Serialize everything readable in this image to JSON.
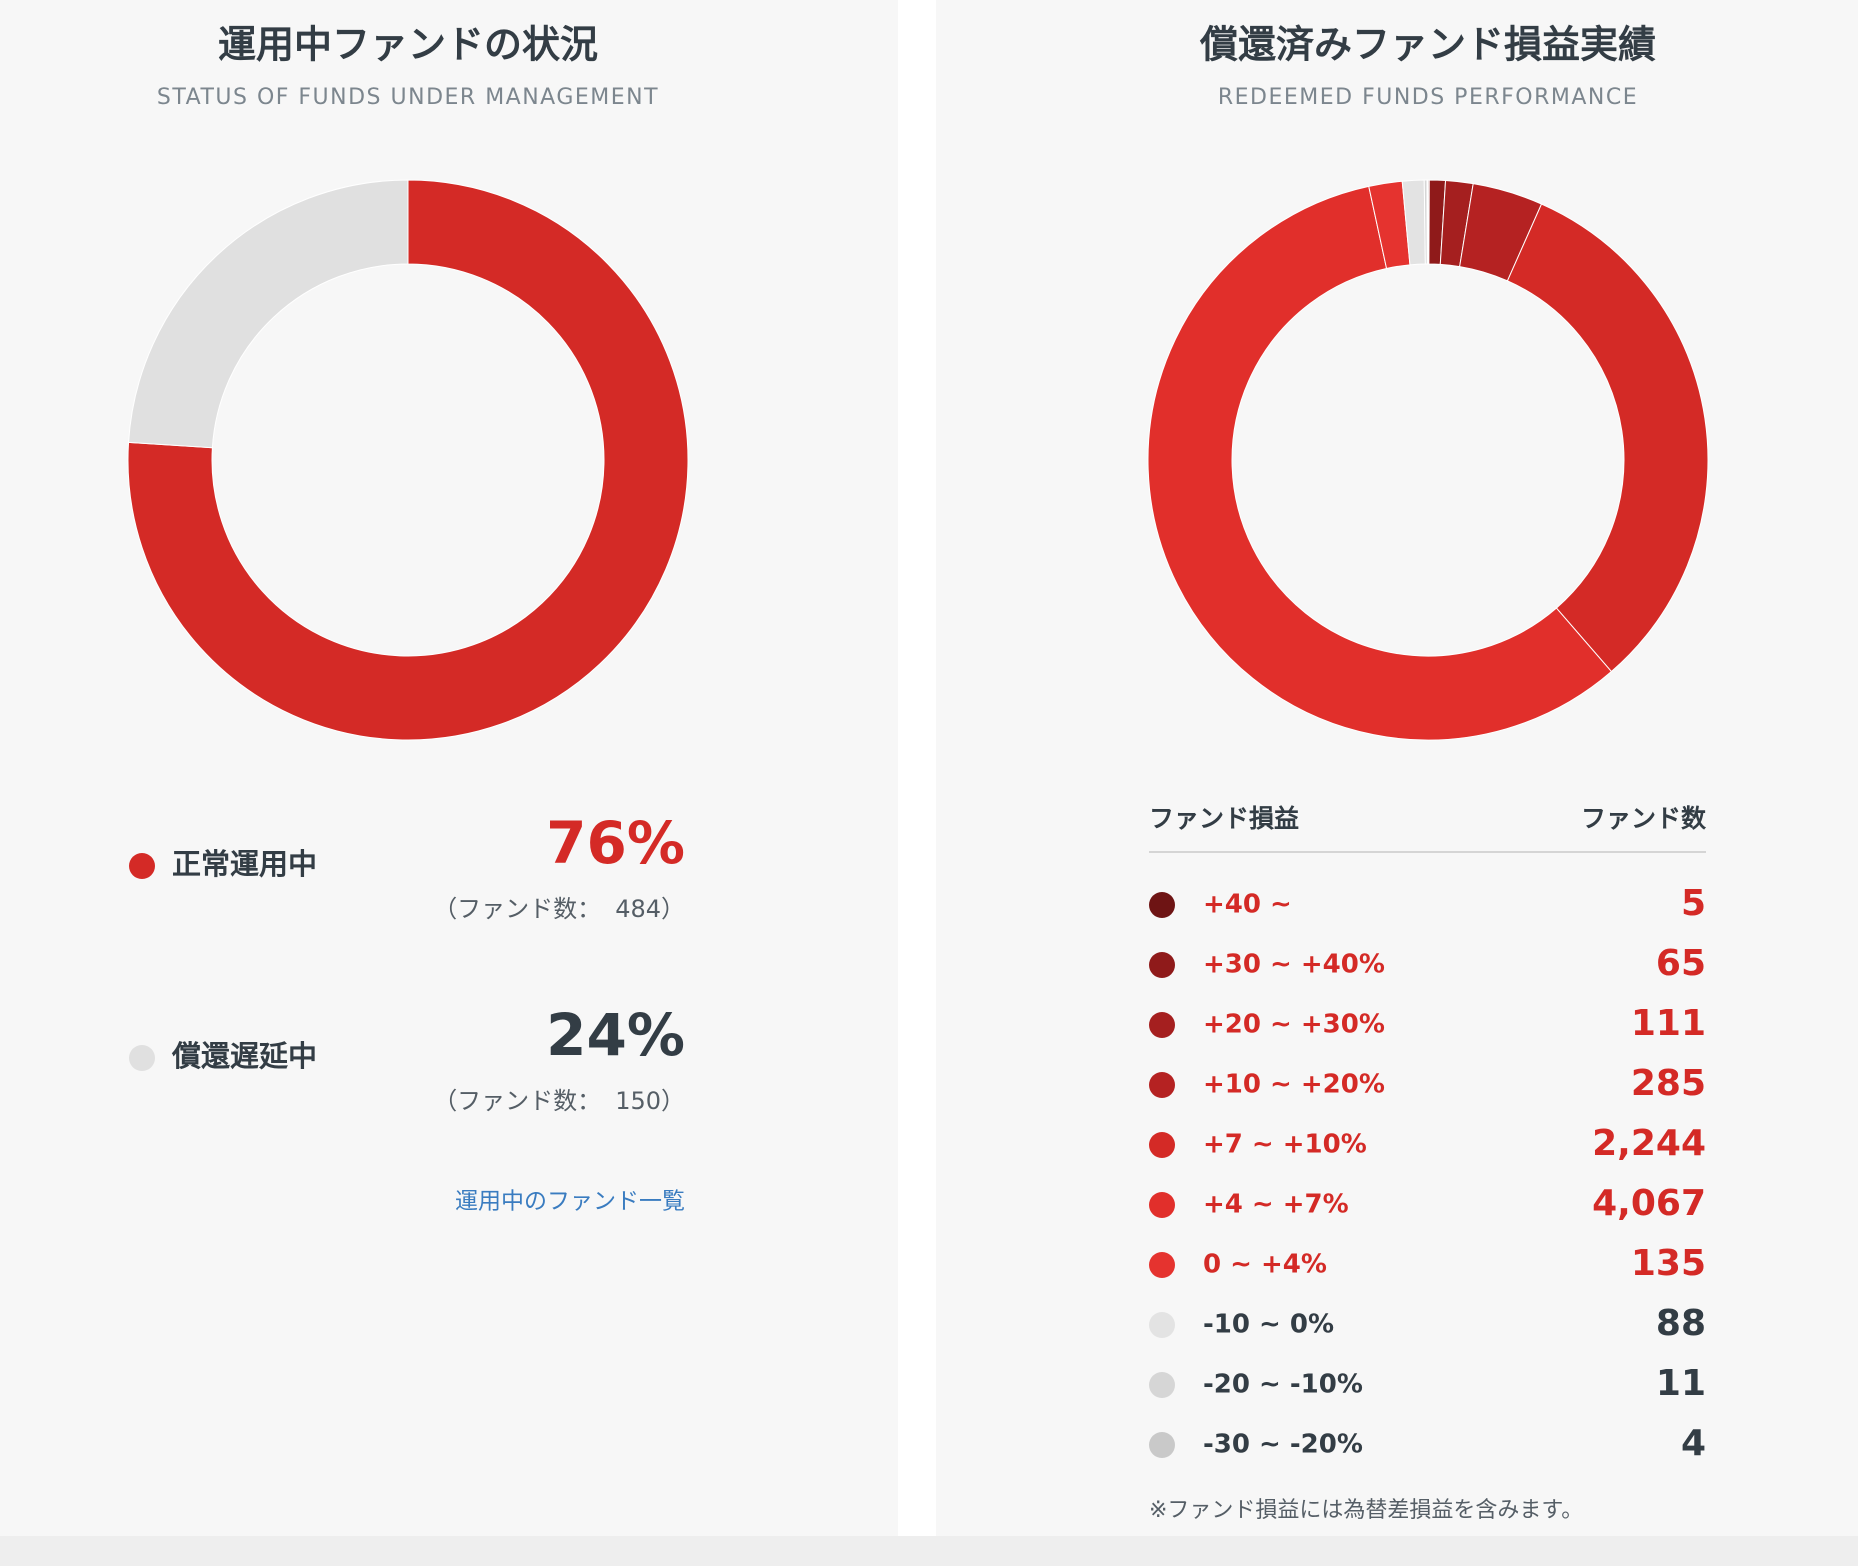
{
  "chart_data": [
    {
      "type": "donut",
      "title": "運用中ファンドの状況",
      "subtitle": "STATUS OF FUNDS UNDER MANAGEMENT",
      "categories": [
        "正常運用中",
        "償還遅延中"
      ],
      "values": [
        76,
        24
      ],
      "value_labels": [
        "76%",
        "24%"
      ],
      "colors": [
        "#d42a26",
        "#e0e0e0"
      ],
      "label_colors": [
        "#d42a26",
        "#333d45"
      ],
      "count_prefix": "（ファンド数：",
      "counts": [
        484,
        150
      ],
      "count_suffix": "）",
      "link": "運用中のファンド一覧"
    },
    {
      "type": "donut",
      "title": "償還済みファンド損益実績",
      "subtitle": "REDEEMED FUNDS PERFORMANCE",
      "column_headers": [
        "ファンド損益",
        "ファンド数"
      ],
      "categories": [
        "+40 ~",
        "+30 ~ +40%",
        "+20 ~ +30%",
        "+10 ~ +20%",
        "+7 ~ +10%",
        "+4 ~ +7%",
        "0 ~ +4%",
        "-10 ~ 0%",
        "-20 ~ -10%",
        "-30 ~ -20%"
      ],
      "values": [
        5,
        65,
        111,
        285,
        2244,
        4067,
        135,
        88,
        11,
        4
      ],
      "value_labels": [
        "5",
        "65",
        "111",
        "285",
        "2,244",
        "4,067",
        "135",
        "88",
        "11",
        "4"
      ],
      "colors": [
        "#6e1414",
        "#8f1a1a",
        "#a51f1f",
        "#b52222",
        "#d42a26",
        "#e12f2b",
        "#e5332f",
        "#e3e3e3",
        "#d6d6d6",
        "#c9c9c9"
      ],
      "label_colors": [
        "#d42a26",
        "#d42a26",
        "#d42a26",
        "#d42a26",
        "#d42a26",
        "#d42a26",
        "#d42a26",
        "#333d45",
        "#333d45",
        "#333d45"
      ],
      "note": "※ファンド損益には為替差損益を含みます。"
    }
  ]
}
